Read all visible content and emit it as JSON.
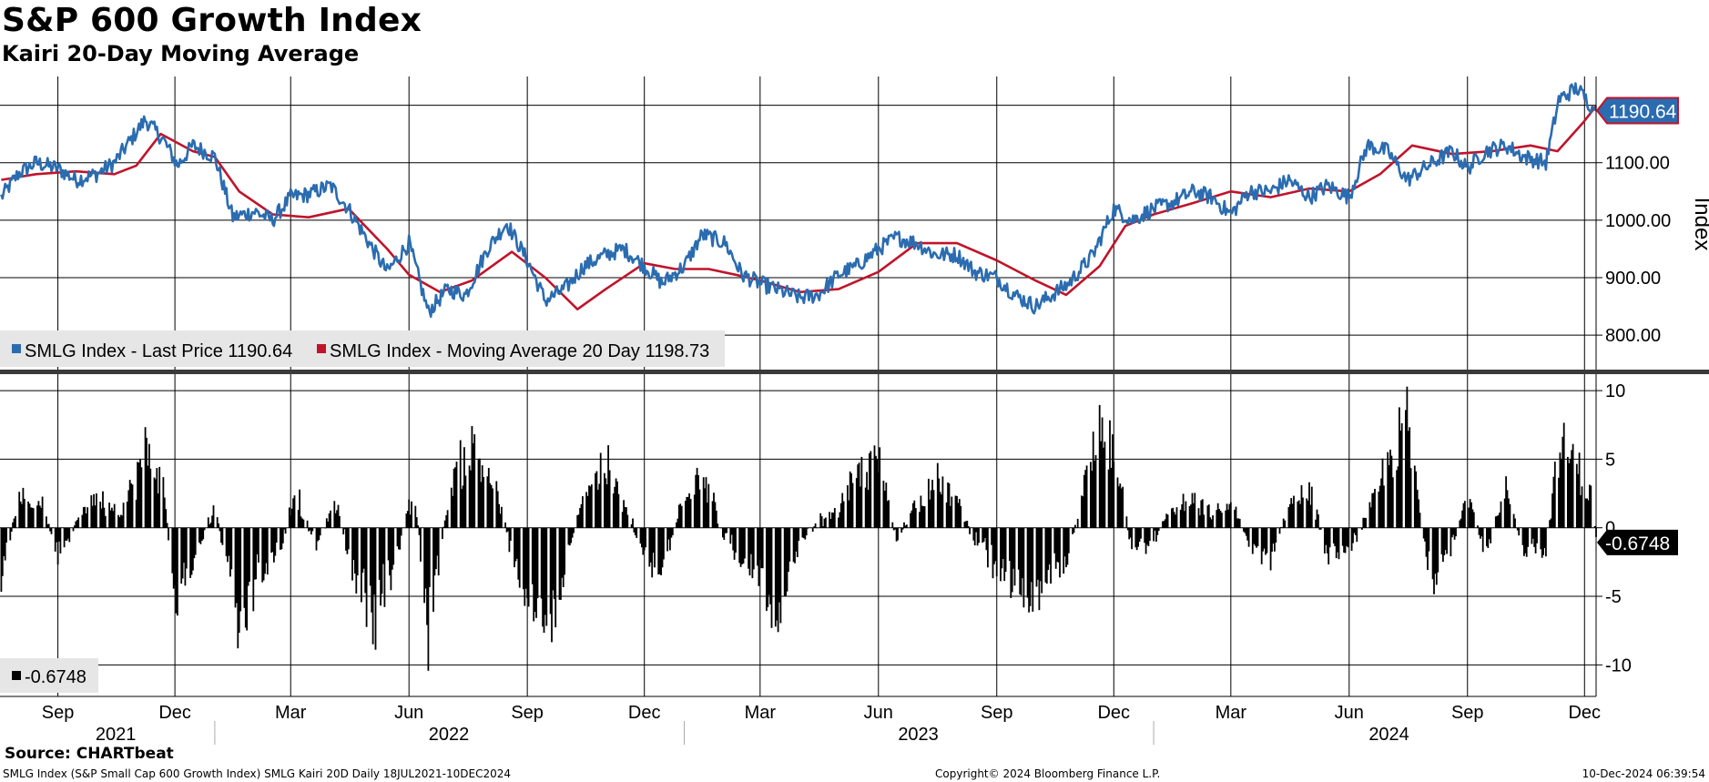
{
  "header": {
    "title": "S&P 600 Growth Index",
    "subtitle": "Kairi 20-Day Moving Average"
  },
  "footer": {
    "source": "Source: CHARTbeat",
    "description": "SMLG Index (S&P Small Cap 600 Growth Index) SMLG Kairi 20D  Daily 18JUL2021-10DEC2024",
    "copyright": "Copyright© 2024 Bloomberg Finance L.P.",
    "timestamp": "10-Dec-2024 06:39:54"
  },
  "colors": {
    "price": "#2b6cb0",
    "ma": "#c0142b",
    "kairi": "#000000",
    "grid": "#000000",
    "legend_bg": "#e6e6e6"
  },
  "chart_data": [
    {
      "type": "line",
      "title": "S&P 600 Growth Index",
      "ylabel": "Index",
      "ylim": [
        740,
        1250
      ],
      "yticks": [
        800,
        900,
        1000,
        1100
      ],
      "ytick_labels": [
        "800.00",
        "900.00",
        "1000.00",
        "1100.00"
      ],
      "last_value_label": "1190.64",
      "legend": [
        {
          "label": "SMLG Index - Last Price 1190.64",
          "color": "#2b6cb0"
        },
        {
          "label": "SMLG Index - Moving Average 20 Day 1198.73",
          "color": "#c0142b"
        }
      ],
      "series": [
        {
          "name": "SMLG Index - Last Price",
          "x": [
            "2021-07-19",
            "2021-08-01",
            "2021-08-15",
            "2021-09-01",
            "2021-09-15",
            "2021-10-01",
            "2021-10-15",
            "2021-11-08",
            "2021-11-22",
            "2021-12-03",
            "2021-12-15",
            "2022-01-01",
            "2022-01-15",
            "2022-02-01",
            "2022-02-15",
            "2022-03-01",
            "2022-03-15",
            "2022-04-01",
            "2022-04-15",
            "2022-05-01",
            "2022-05-15",
            "2022-06-01",
            "2022-06-16",
            "2022-07-01",
            "2022-07-15",
            "2022-08-01",
            "2022-08-16",
            "2022-09-01",
            "2022-09-15",
            "2022-09-30",
            "2022-10-15",
            "2022-11-01",
            "2022-11-15",
            "2022-12-01",
            "2022-12-15",
            "2023-01-01",
            "2023-01-15",
            "2023-02-02",
            "2023-02-15",
            "2023-03-01",
            "2023-03-13",
            "2023-04-01",
            "2023-04-15",
            "2023-05-01",
            "2023-05-15",
            "2023-06-01",
            "2023-06-15",
            "2023-07-01",
            "2023-07-15",
            "2023-08-01",
            "2023-08-15",
            "2023-09-01",
            "2023-09-15",
            "2023-10-01",
            "2023-10-27",
            "2023-11-15",
            "2023-12-01",
            "2023-12-15",
            "2024-01-01",
            "2024-01-15",
            "2024-02-01",
            "2024-02-15",
            "2024-03-01",
            "2024-03-15",
            "2024-04-01",
            "2024-04-15",
            "2024-05-01",
            "2024-05-15",
            "2024-06-01",
            "2024-06-15",
            "2024-07-01",
            "2024-07-16",
            "2024-08-05",
            "2024-08-20",
            "2024-09-01",
            "2024-09-15",
            "2024-10-01",
            "2024-10-15",
            "2024-11-01",
            "2024-11-11",
            "2024-11-25",
            "2024-12-06",
            "2024-12-10"
          ],
          "values": [
            1040,
            1080,
            1100,
            1090,
            1070,
            1080,
            1100,
            1175,
            1140,
            1095,
            1130,
            1110,
            1005,
            1015,
            1000,
            1040,
            1045,
            1060,
            1020,
            960,
            910,
            960,
            840,
            880,
            870,
            950,
            995,
            930,
            860,
            880,
            920,
            940,
            950,
            920,
            890,
            920,
            975,
            960,
            905,
            890,
            880,
            865,
            870,
            905,
            920,
            950,
            970,
            960,
            940,
            940,
            910,
            900,
            870,
            850,
            890,
            940,
            1020,
            1000,
            1020,
            1030,
            1050,
            1040,
            1010,
            1050,
            1050,
            1070,
            1040,
            1060,
            1040,
            1130,
            1120,
            1070,
            1100,
            1120,
            1090,
            1120,
            1130,
            1110,
            1100,
            1210,
            1230,
            1200,
            1190.64
          ]
        },
        {
          "name": "SMLG Index - Moving Average 20 Day",
          "x": [
            "2021-07-19",
            "2021-08-15",
            "2021-09-15",
            "2021-10-15",
            "2021-11-01",
            "2021-11-20",
            "2021-12-15",
            "2022-01-01",
            "2022-01-20",
            "2022-02-15",
            "2022-03-15",
            "2022-04-15",
            "2022-05-15",
            "2022-06-01",
            "2022-06-25",
            "2022-07-20",
            "2022-08-20",
            "2022-09-15",
            "2022-10-10",
            "2022-11-01",
            "2022-12-01",
            "2022-12-25",
            "2023-01-20",
            "2023-02-10",
            "2023-03-01",
            "2023-04-01",
            "2023-05-01",
            "2023-06-01",
            "2023-07-01",
            "2023-08-01",
            "2023-09-01",
            "2023-10-01",
            "2023-10-25",
            "2023-11-20",
            "2023-12-10",
            "2024-01-01",
            "2024-02-01",
            "2024-03-01",
            "2024-04-01",
            "2024-05-01",
            "2024-06-01",
            "2024-06-25",
            "2024-07-20",
            "2024-08-20",
            "2024-09-20",
            "2024-10-20",
            "2024-11-10",
            "2024-11-30",
            "2024-12-10"
          ],
          "values": [
            1070,
            1080,
            1085,
            1080,
            1095,
            1150,
            1120,
            1110,
            1050,
            1010,
            1005,
            1020,
            950,
            905,
            875,
            895,
            945,
            900,
            845,
            880,
            925,
            915,
            915,
            905,
            895,
            875,
            880,
            910,
            960,
            960,
            930,
            895,
            870,
            920,
            990,
            1010,
            1030,
            1050,
            1040,
            1055,
            1050,
            1080,
            1130,
            1115,
            1120,
            1130,
            1120,
            1170,
            1198.73
          ]
        }
      ]
    },
    {
      "type": "bar",
      "title": "Kairi 20-Day Moving Average",
      "ylim": [
        -12.3,
        11.2
      ],
      "yticks": [
        -10,
        -5,
        0,
        5,
        10
      ],
      "ytick_labels": [
        "-10",
        "-5",
        "0",
        "5",
        "10"
      ],
      "last_value_label": "-0.6748",
      "legend": [
        {
          "label": "-0.6748",
          "color": "#000000"
        }
      ],
      "series": [
        {
          "name": "Kairi 20D",
          "x": [
            "2021-07-19",
            "2021-08-01",
            "2021-08-20",
            "2021-09-01",
            "2021-09-20",
            "2021-10-01",
            "2021-10-20",
            "2021-11-08",
            "2021-11-22",
            "2021-12-01",
            "2021-12-15",
            "2022-01-01",
            "2022-01-20",
            "2022-02-05",
            "2022-02-20",
            "2022-03-05",
            "2022-03-20",
            "2022-04-05",
            "2022-04-20",
            "2022-05-05",
            "2022-05-20",
            "2022-06-05",
            "2022-06-16",
            "2022-06-25",
            "2022-07-05",
            "2022-07-20",
            "2022-08-05",
            "2022-08-20",
            "2022-09-05",
            "2022-09-20",
            "2022-09-30",
            "2022-10-15",
            "2022-11-01",
            "2022-11-15",
            "2022-12-01",
            "2022-12-15",
            "2023-01-01",
            "2023-01-15",
            "2023-02-02",
            "2023-02-15",
            "2023-03-01",
            "2023-03-13",
            "2023-04-01",
            "2023-04-15",
            "2023-05-01",
            "2023-05-15",
            "2023-06-01",
            "2023-06-15",
            "2023-07-01",
            "2023-07-15",
            "2023-08-01",
            "2023-08-15",
            "2023-09-01",
            "2023-09-15",
            "2023-10-01",
            "2023-10-15",
            "2023-10-27",
            "2023-11-10",
            "2023-11-20",
            "2023-12-01",
            "2023-12-15",
            "2024-01-01",
            "2024-01-15",
            "2024-02-01",
            "2024-02-15",
            "2024-03-01",
            "2024-03-15",
            "2024-04-01",
            "2024-04-15",
            "2024-05-01",
            "2024-05-15",
            "2024-06-01",
            "2024-06-15",
            "2024-07-01",
            "2024-07-16",
            "2024-08-05",
            "2024-08-20",
            "2024-09-01",
            "2024-09-15",
            "2024-10-01",
            "2024-10-15",
            "2024-11-01",
            "2024-11-11",
            "2024-11-25",
            "2024-12-06",
            "2024-12-10"
          ],
          "values": [
            -4,
            2.5,
            2,
            -2.5,
            1.5,
            2.5,
            1,
            6,
            3.5,
            -6,
            -3,
            2,
            -8.5,
            -3.5,
            -2,
            3,
            -1.5,
            2,
            -4,
            -7.5,
            -3,
            3,
            -8.5,
            -2,
            4,
            6.5,
            4,
            -2,
            -6.5,
            -7.5,
            -3,
            3,
            5,
            2,
            -2,
            -3.5,
            3,
            5,
            -1,
            -2.5,
            -3.5,
            -7,
            -1,
            0.5,
            1.5,
            4,
            5.5,
            -1,
            2,
            4,
            2,
            -1,
            -3,
            -4.5,
            -5,
            -3,
            -2.5,
            4,
            7.5,
            7,
            -2,
            -1,
            1.5,
            2,
            1,
            2,
            -1,
            -3,
            2,
            3,
            -2,
            -2,
            1,
            5,
            8.5,
            -5.5,
            -1.5,
            3,
            -2,
            3,
            -2,
            -2,
            6.5,
            5,
            2.5,
            -0.6748
          ]
        }
      ]
    }
  ],
  "x_axis": {
    "start": "2021-07-18",
    "end": "2024-12-10",
    "month_ticks": [
      {
        "date": "2021-09-01",
        "label": "Sep"
      },
      {
        "date": "2021-12-01",
        "label": "Dec"
      },
      {
        "date": "2022-03-01",
        "label": "Mar"
      },
      {
        "date": "2022-06-01",
        "label": "Jun"
      },
      {
        "date": "2022-09-01",
        "label": "Sep"
      },
      {
        "date": "2022-12-01",
        "label": "Dec"
      },
      {
        "date": "2023-03-01",
        "label": "Mar"
      },
      {
        "date": "2023-06-01",
        "label": "Jun"
      },
      {
        "date": "2023-09-01",
        "label": "Sep"
      },
      {
        "date": "2023-12-01",
        "label": "Dec"
      },
      {
        "date": "2024-03-01",
        "label": "Mar"
      },
      {
        "date": "2024-06-01",
        "label": "Jun"
      },
      {
        "date": "2024-09-01",
        "label": "Sep"
      },
      {
        "date": "2024-12-01",
        "label": "Dec"
      }
    ],
    "year_labels": [
      {
        "date": "2021-10-16",
        "label": "2021"
      },
      {
        "date": "2022-07-02",
        "label": "2022"
      },
      {
        "date": "2023-07-02",
        "label": "2023"
      },
      {
        "date": "2024-07-02",
        "label": "2024"
      }
    ]
  }
}
